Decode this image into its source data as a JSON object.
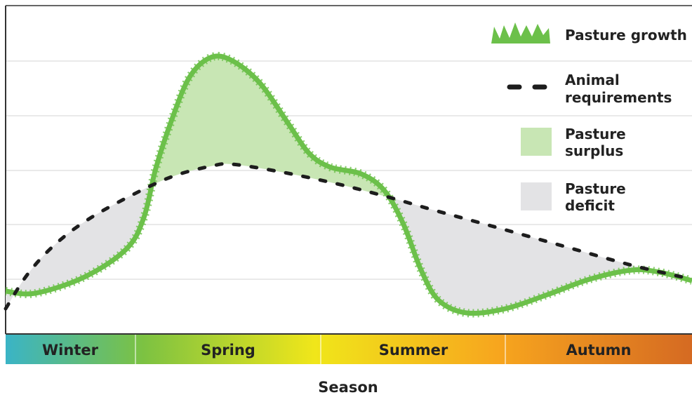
{
  "seasons": [
    "Winter",
    "Spring",
    "Summer",
    "Autumn"
  ],
  "axis_title": "Season",
  "legend": [
    {
      "lines": [
        "Pasture growth"
      ]
    },
    {
      "lines": [
        "Animal",
        "requirements"
      ]
    },
    {
      "lines": [
        "Pasture",
        "surplus"
      ]
    },
    {
      "lines": [
        "Pasture",
        "deficit"
      ]
    }
  ]
}
